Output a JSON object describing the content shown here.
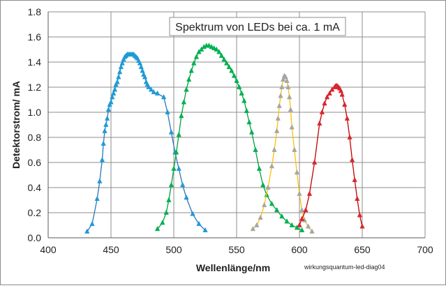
{
  "chart_data": {
    "type": "scatter",
    "title": "Spektrum von LEDs bei ca. 1 mA",
    "xlabel": "Wellenlänge/nm",
    "ylabel": "Detektorstrom/ mA",
    "annotation": "wirkungsquantum-led-diag04",
    "xlim": [
      400,
      700
    ],
    "ylim": [
      0,
      1.8
    ],
    "x_ticks": [
      400,
      450,
      500,
      550,
      600,
      650,
      700
    ],
    "y_ticks": [
      0.0,
      0.2,
      0.4,
      0.6,
      0.8,
      1.0,
      1.2,
      1.4,
      1.6,
      1.8
    ],
    "y_tick_labels": [
      "0.0",
      "0.2",
      "0.4",
      "0.6",
      "0.8",
      "1.0",
      "1.2",
      "1.4",
      "1.6",
      "1.8"
    ],
    "grid": true,
    "series": [
      {
        "line_color": "#2e75b6",
        "marker_color": "#1f9ad6",
        "x": [
          431,
          435,
          439,
          441,
          443,
          444,
          445,
          446,
          447,
          448,
          449,
          450,
          451,
          452,
          453,
          454,
          455,
          456,
          457,
          458,
          459,
          460,
          461,
          462,
          463,
          464,
          465,
          466,
          467,
          468,
          469,
          470,
          471,
          472,
          473,
          474,
          475,
          476,
          477,
          478,
          479,
          480,
          482,
          484,
          487,
          492,
          495,
          498,
          501,
          504,
          507,
          510,
          515,
          520,
          525
        ],
        "y": [
          0.05,
          0.11,
          0.31,
          0.45,
          0.62,
          0.75,
          0.85,
          0.9,
          0.95,
          1.02,
          1.06,
          1.08,
          1.12,
          1.15,
          1.18,
          1.22,
          1.24,
          1.28,
          1.32,
          1.36,
          1.39,
          1.42,
          1.44,
          1.45,
          1.46,
          1.46,
          1.46,
          1.46,
          1.46,
          1.46,
          1.45,
          1.44,
          1.43,
          1.41,
          1.39,
          1.36,
          1.33,
          1.3,
          1.28,
          1.24,
          1.22,
          1.2,
          1.18,
          1.16,
          1.15,
          1.12,
          1.0,
          0.84,
          0.68,
          0.55,
          0.42,
          0.32,
          0.19,
          0.11,
          0.06
        ]
      },
      {
        "line_color": "#00a040",
        "marker_color": "#00b050",
        "x": [
          487,
          491,
          494,
          496,
          498,
          500,
          502,
          504,
          506,
          508,
          510,
          512,
          514,
          516,
          518,
          520,
          522,
          524,
          526,
          528,
          530,
          532,
          534,
          536,
          538,
          540,
          542,
          544,
          546,
          548,
          550,
          552,
          554,
          556,
          558,
          560,
          562,
          565,
          568,
          571,
          574,
          578,
          582,
          586,
          590,
          594,
          598,
          602
        ],
        "y": [
          0.07,
          0.12,
          0.2,
          0.3,
          0.42,
          0.55,
          0.68,
          0.82,
          0.97,
          1.08,
          1.18,
          1.26,
          1.33,
          1.39,
          1.44,
          1.48,
          1.5,
          1.52,
          1.53,
          1.53,
          1.52,
          1.51,
          1.5,
          1.48,
          1.45,
          1.42,
          1.39,
          1.36,
          1.33,
          1.29,
          1.25,
          1.2,
          1.15,
          1.09,
          1.01,
          0.92,
          0.84,
          0.7,
          0.55,
          0.42,
          0.34,
          0.27,
          0.22,
          0.17,
          0.13,
          0.1,
          0.08,
          0.06
        ]
      },
      {
        "line_color": "#ffc000",
        "marker_color": "#a6a6a6",
        "x": [
          563,
          566,
          569,
          572,
          575,
          578,
          580,
          582,
          583,
          584,
          585,
          586,
          587,
          588,
          589,
          590,
          591,
          592,
          593,
          594,
          596,
          598,
          600,
          602,
          604,
          607,
          610
        ],
        "y": [
          0.07,
          0.1,
          0.16,
          0.26,
          0.4,
          0.57,
          0.7,
          0.85,
          0.95,
          1.05,
          1.13,
          1.2,
          1.26,
          1.29,
          1.28,
          1.25,
          1.2,
          1.12,
          1.02,
          0.88,
          0.7,
          0.52,
          0.35,
          0.22,
          0.14,
          0.09,
          0.05
        ]
      },
      {
        "line_color": "#c00000",
        "marker_color": "#d9262e",
        "x": [
          600,
          602,
          605,
          608,
          612,
          616,
          618,
          620,
          622,
          624,
          626,
          628,
          629,
          630,
          631,
          632,
          633,
          634,
          636,
          638,
          640,
          642,
          644,
          646,
          648,
          650
        ],
        "y": [
          0.1,
          0.15,
          0.22,
          0.35,
          0.6,
          0.91,
          1.0,
          1.07,
          1.12,
          1.15,
          1.18,
          1.2,
          1.21,
          1.21,
          1.2,
          1.19,
          1.17,
          1.14,
          1.06,
          0.95,
          0.8,
          0.62,
          0.46,
          0.31,
          0.18,
          0.09
        ]
      }
    ]
  }
}
